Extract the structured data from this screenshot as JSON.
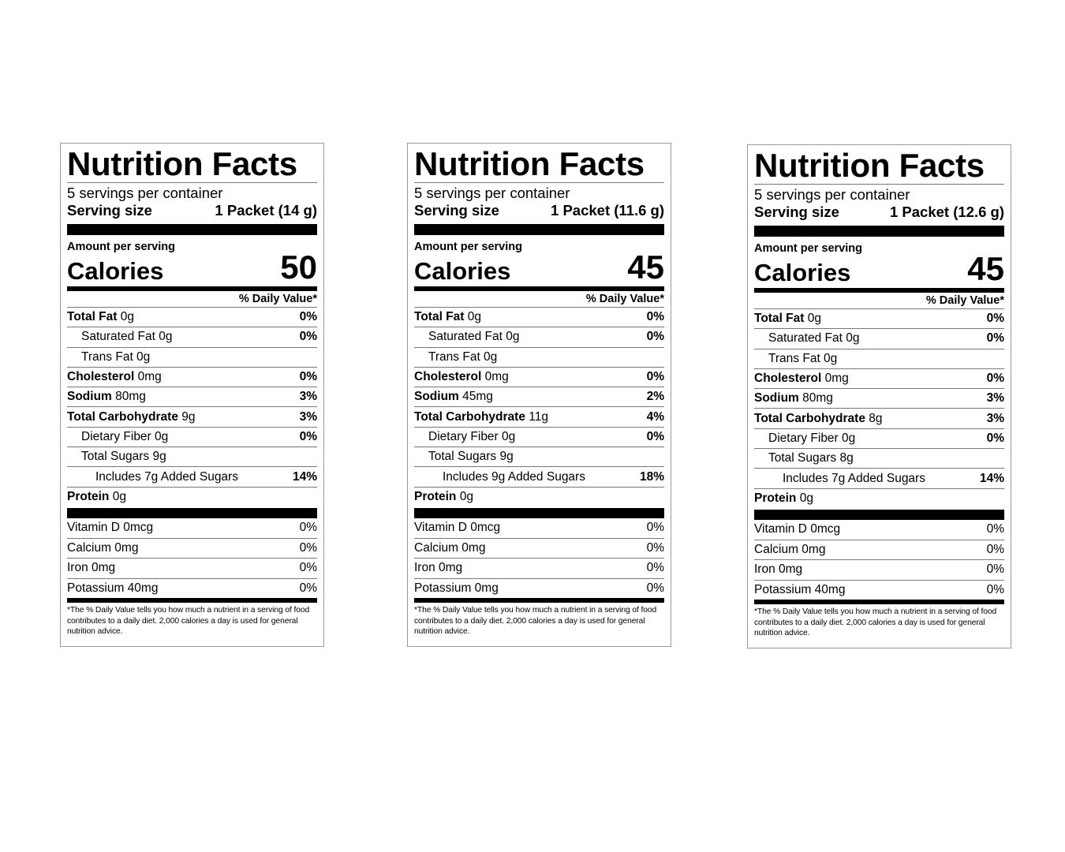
{
  "labels": [
    {
      "title": "Nutrition Facts",
      "servings": "5 servings per container",
      "serving_size_label": "Serving size",
      "serving_size_value": "1 Packet (14 g)",
      "amount_label": "Amount per serving",
      "calories_label": "Calories",
      "calories": "50",
      "dv_header": "% Daily Value*",
      "total_fat_label": "Total Fat",
      "total_fat_amt": "0g",
      "total_fat_pct": "0%",
      "sat_fat": "Saturated Fat 0g",
      "sat_fat_pct": "0%",
      "trans_fat": "Trans Fat 0g",
      "chol_label": "Cholesterol",
      "chol_amt": "0mg",
      "chol_pct": "0%",
      "sodium_label": "Sodium",
      "sodium_amt": "80mg",
      "sodium_pct": "3%",
      "carb_label": "Total Carbohydrate",
      "carb_amt": "9g",
      "carb_pct": "3%",
      "fiber": "Dietary Fiber 0g",
      "fiber_pct": "0%",
      "sugars": "Total Sugars 9g",
      "added_sugars": "Includes 7g Added Sugars",
      "added_sugars_pct": "14%",
      "protein_label": "Protein",
      "protein_amt": "0g",
      "vit_d": "Vitamin D 0mcg",
      "vit_d_pct": "0%",
      "calcium": "Calcium 0mg",
      "calcium_pct": "0%",
      "iron": "Iron 0mg",
      "iron_pct": "0%",
      "potassium": "Potassium 40mg",
      "potassium_pct": "0%",
      "footnote": "*The % Daily Value tells you how much a nutrient in a serving of food contributes to a daily diet. 2,000 calories a day is used for general nutrition advice."
    },
    {
      "title": "Nutrition Facts",
      "servings": "5 servings per container",
      "serving_size_label": "Serving size",
      "serving_size_value": "1 Packet (11.6 g)",
      "amount_label": "Amount per serving",
      "calories_label": "Calories",
      "calories": "45",
      "dv_header": "% Daily Value*",
      "total_fat_label": "Total Fat",
      "total_fat_amt": "0g",
      "total_fat_pct": "0%",
      "sat_fat": "Saturated Fat 0g",
      "sat_fat_pct": "0%",
      "trans_fat": "Trans Fat 0g",
      "chol_label": "Cholesterol",
      "chol_amt": "0mg",
      "chol_pct": "0%",
      "sodium_label": "Sodium",
      "sodium_amt": "45mg",
      "sodium_pct": "2%",
      "carb_label": "Total Carbohydrate",
      "carb_amt": "11g",
      "carb_pct": "4%",
      "fiber": "Dietary Fiber 0g",
      "fiber_pct": "0%",
      "sugars": "Total Sugars 9g",
      "added_sugars": "Includes 9g Added Sugars",
      "added_sugars_pct": "18%",
      "protein_label": "Protein",
      "protein_amt": "0g",
      "vit_d": "Vitamin D 0mcg",
      "vit_d_pct": "0%",
      "calcium": "Calcium 0mg",
      "calcium_pct": "0%",
      "iron": "Iron 0mg",
      "iron_pct": "0%",
      "potassium": "Potassium 0mg",
      "potassium_pct": "0%",
      "footnote": "*The % Daily Value tells you how much a nutrient in a serving of food contributes to a daily diet. 2,000 calories a day is used for general nutrition advice."
    },
    {
      "title": "Nutrition Facts",
      "servings": "5 servings per container",
      "serving_size_label": "Serving size",
      "serving_size_value": "1 Packet (12.6 g)",
      "amount_label": "Amount per serving",
      "calories_label": "Calories",
      "calories": "45",
      "dv_header": "% Daily Value*",
      "total_fat_label": "Total Fat",
      "total_fat_amt": "0g",
      "total_fat_pct": "0%",
      "sat_fat": "Saturated Fat 0g",
      "sat_fat_pct": "0%",
      "trans_fat": "Trans Fat 0g",
      "chol_label": "Cholesterol",
      "chol_amt": "0mg",
      "chol_pct": "0%",
      "sodium_label": "Sodium",
      "sodium_amt": "80mg",
      "sodium_pct": "3%",
      "carb_label": "Total Carbohydrate",
      "carb_amt": "8g",
      "carb_pct": "3%",
      "fiber": "Dietary Fiber 0g",
      "fiber_pct": "0%",
      "sugars": "Total Sugars 8g",
      "added_sugars": "Includes 7g Added Sugars",
      "added_sugars_pct": "14%",
      "protein_label": "Protein",
      "protein_amt": "0g",
      "vit_d": "Vitamin D 0mcg",
      "vit_d_pct": "0%",
      "calcium": "Calcium 0mg",
      "calcium_pct": "0%",
      "iron": "Iron 0mg",
      "iron_pct": "0%",
      "potassium": "Potassium 40mg",
      "potassium_pct": "0%",
      "footnote": "*The % Daily Value tells you how much a nutrient in a serving of food contributes to a daily diet. 2,000 calories a day is used for general nutrition advice."
    }
  ]
}
